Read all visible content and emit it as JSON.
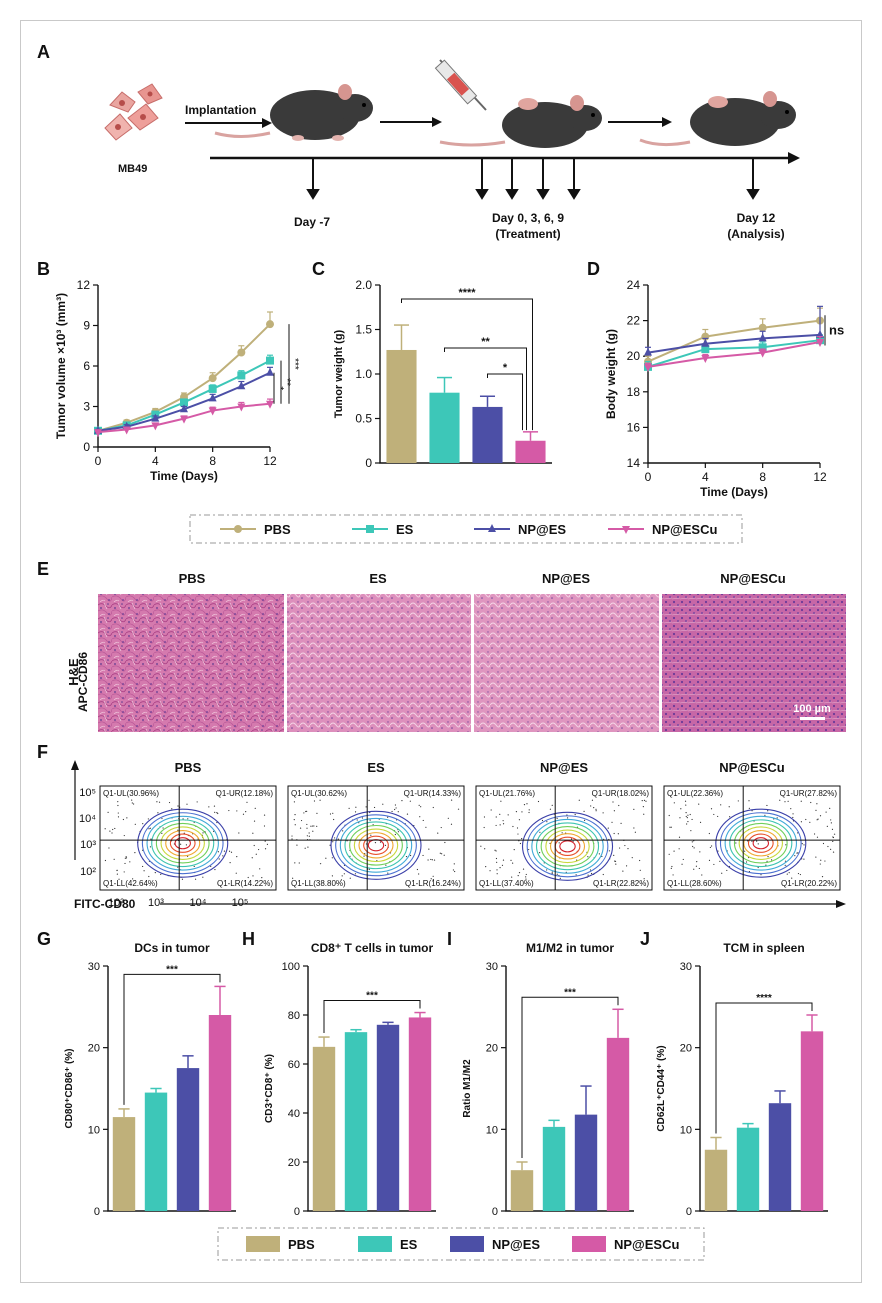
{
  "panel_labels": [
    "A",
    "B",
    "C",
    "D",
    "E",
    "F",
    "G",
    "H",
    "I",
    "J"
  ],
  "colors": {
    "PBS": "#bfb07a",
    "ES": "#3dc7b8",
    "NP@ES": "#4c4fa6",
    "NP@ESCu": "#d55aa6",
    "axis": "#111111",
    "he": "#c24b8f"
  },
  "timeline": {
    "cell_label": "MB49",
    "implantation": "Implantation",
    "day_minus7": "Day -7",
    "treatment_days": "Day 0, 3, 6, 9",
    "treatment": "(Treatment)",
    "analysis_day": "Day 12",
    "analysis": "(Analysis)"
  },
  "legend_top": [
    "PBS",
    "ES",
    "NP@ES",
    "NP@ESCu"
  ],
  "he": {
    "row_label": "H&E",
    "titles": [
      "PBS",
      "ES",
      "NP@ES",
      "NP@ESCu"
    ],
    "scale": "100 µm"
  },
  "flow": {
    "titles": [
      "PBS",
      "ES",
      "NP@ES",
      "NP@ESCu"
    ],
    "ylabel": "APC-CD86",
    "xlabel": "FITC-CD80",
    "yticks": [
      "10⁵",
      "10⁴",
      "10³",
      "10²"
    ],
    "xticks": [
      "10²",
      "10³",
      "10⁴",
      "10⁵"
    ],
    "quadrants": [
      {
        "ul": "Q1-UL(30.96%)",
        "ur": "Q1-UR(12.18%)",
        "ll": "Q1-LL(42.64%)",
        "lr": "Q1-LR(14.22%)"
      },
      {
        "ul": "Q1-UL(30.62%)",
        "ur": "Q1-UR(14.33%)",
        "ll": "Q1-LL(38.80%)",
        "lr": "Q1-LR(16.24%)"
      },
      {
        "ul": "Q1-UL(21.76%)",
        "ur": "Q1-UR(18.02%)",
        "ll": "Q1-LL(37.40%)",
        "lr": "Q1-LR(22.82%)"
      },
      {
        "ul": "Q1-UL(22.36%)",
        "ur": "Q1-UR(27.82%)",
        "ll": "Q1-LL(28.60%)",
        "lr": "Q1-LR(20.22%)"
      }
    ]
  },
  "legend_bottom": [
    "PBS",
    "ES",
    "NP@ES",
    "NP@ESCu"
  ],
  "chart_data": [
    {
      "panel": "B",
      "type": "line",
      "xlabel": "Time (Days)",
      "ylabel": "Tumor volume ×10³ (mm³)",
      "xlim": [
        0,
        12
      ],
      "ylim": [
        0,
        12
      ],
      "xticks": [
        0,
        4,
        8,
        12
      ],
      "yticks": [
        0,
        3,
        6,
        9,
        12
      ],
      "x": [
        0,
        2,
        4,
        6,
        8,
        10,
        12
      ],
      "series": [
        {
          "name": "PBS",
          "values": [
            1.2,
            1.8,
            2.6,
            3.7,
            5.1,
            7.0,
            9.1
          ],
          "err": [
            0.15,
            0.2,
            0.25,
            0.3,
            0.4,
            0.5,
            0.9
          ]
        },
        {
          "name": "ES",
          "values": [
            1.2,
            1.6,
            2.4,
            3.3,
            4.3,
            5.3,
            6.4
          ],
          "err": [
            0.1,
            0.15,
            0.2,
            0.25,
            0.3,
            0.35,
            0.4
          ]
        },
        {
          "name": "NP@ES",
          "values": [
            1.2,
            1.5,
            2.1,
            2.8,
            3.6,
            4.5,
            5.5
          ],
          "err": [
            0.1,
            0.15,
            0.2,
            0.2,
            0.3,
            0.35,
            0.4
          ]
        },
        {
          "name": "NP@ESCu",
          "values": [
            1.1,
            1.3,
            1.6,
            2.1,
            2.7,
            3.0,
            3.2
          ],
          "err": [
            0.1,
            0.1,
            0.15,
            0.2,
            0.25,
            0.3,
            0.35
          ]
        }
      ],
      "significance": [
        "***",
        "**",
        "*"
      ]
    },
    {
      "panel": "C",
      "type": "bar",
      "ylabel": "Tumor weight (g)",
      "ylim": [
        0,
        2.0
      ],
      "yticks": [
        "0",
        "0.5",
        "1.0",
        "1.5",
        "2.0"
      ],
      "categories": [
        "PBS",
        "ES",
        "NP@ES",
        "NP@ESCu"
      ],
      "values": [
        1.27,
        0.79,
        0.63,
        0.25
      ],
      "err": [
        0.28,
        0.17,
        0.12,
        0.1
      ],
      "significance": [
        "****",
        "**",
        "*"
      ]
    },
    {
      "panel": "D",
      "type": "line",
      "xlabel": "Time (Days)",
      "ylabel": "Body weight (g)",
      "xlim": [
        0,
        12
      ],
      "ylim": [
        14,
        24
      ],
      "xticks": [
        0,
        4,
        8,
        12
      ],
      "yticks": [
        14,
        16,
        18,
        20,
        22,
        24
      ],
      "x": [
        0,
        4,
        8,
        12
      ],
      "series": [
        {
          "name": "PBS",
          "values": [
            19.7,
            21.1,
            21.6,
            22.0
          ],
          "err": [
            0.3,
            0.4,
            0.5,
            0.7
          ]
        },
        {
          "name": "ES",
          "values": [
            19.4,
            20.4,
            20.5,
            20.9
          ],
          "err": [
            0.3,
            0.3,
            0.3,
            0.3
          ]
        },
        {
          "name": "NP@ES",
          "values": [
            20.2,
            20.7,
            21.0,
            21.2
          ],
          "err": [
            0.3,
            0.3,
            0.4,
            1.6
          ]
        },
        {
          "name": "NP@ESCu",
          "values": [
            19.4,
            19.9,
            20.2,
            20.8
          ],
          "err": [
            0.2,
            0.2,
            0.2,
            0.3
          ]
        }
      ],
      "significance": [
        "ns"
      ]
    },
    {
      "panel": "G",
      "type": "bar",
      "title": "DCs in tumor",
      "ylabel": "CD80⁺CD86⁺ (%)",
      "ylim": [
        0,
        30
      ],
      "yticks": [
        "0",
        "10",
        "20",
        "30"
      ],
      "categories": [
        "PBS",
        "ES",
        "NP@ES",
        "NP@ESCu"
      ],
      "values": [
        11.5,
        14.5,
        17.5,
        24
      ],
      "err": [
        1,
        0.5,
        1.5,
        3.5
      ],
      "significance": [
        "***"
      ]
    },
    {
      "panel": "H",
      "type": "bar",
      "title": "CD8⁺ T cells in tumor",
      "ylabel": "CD3⁺CD8⁺ (%)",
      "ylim": [
        0,
        100
      ],
      "yticks": [
        "0",
        "20",
        "40",
        "60",
        "80",
        "100"
      ],
      "categories": [
        "PBS",
        "ES",
        "NP@ES",
        "NP@ESCu"
      ],
      "values": [
        67,
        73,
        76,
        79
      ],
      "err": [
        4,
        1,
        1,
        2
      ],
      "significance": [
        "***"
      ]
    },
    {
      "panel": "I",
      "type": "bar",
      "title": "M1/M2 in tumor",
      "ylabel": "Ratio M1/M2",
      "ylim": [
        0,
        30
      ],
      "yticks": [
        "0",
        "10",
        "20",
        "30"
      ],
      "categories": [
        "PBS",
        "ES",
        "NP@ES",
        "NP@ESCu"
      ],
      "values": [
        5,
        10.3,
        11.8,
        21.2
      ],
      "err": [
        1,
        0.8,
        3.5,
        3.5
      ],
      "significance": [
        "***"
      ]
    },
    {
      "panel": "J",
      "type": "bar",
      "title": "TCM in spleen",
      "ylabel": "CD62L⁺CD44⁺ (%)",
      "ylim": [
        0,
        30
      ],
      "yticks": [
        "0",
        "10",
        "20",
        "30"
      ],
      "categories": [
        "PBS",
        "ES",
        "NP@ES",
        "NP@ESCu"
      ],
      "values": [
        7.5,
        10.2,
        13.2,
        22
      ],
      "err": [
        1.5,
        0.5,
        1.5,
        2
      ],
      "significance": [
        "****"
      ]
    }
  ]
}
